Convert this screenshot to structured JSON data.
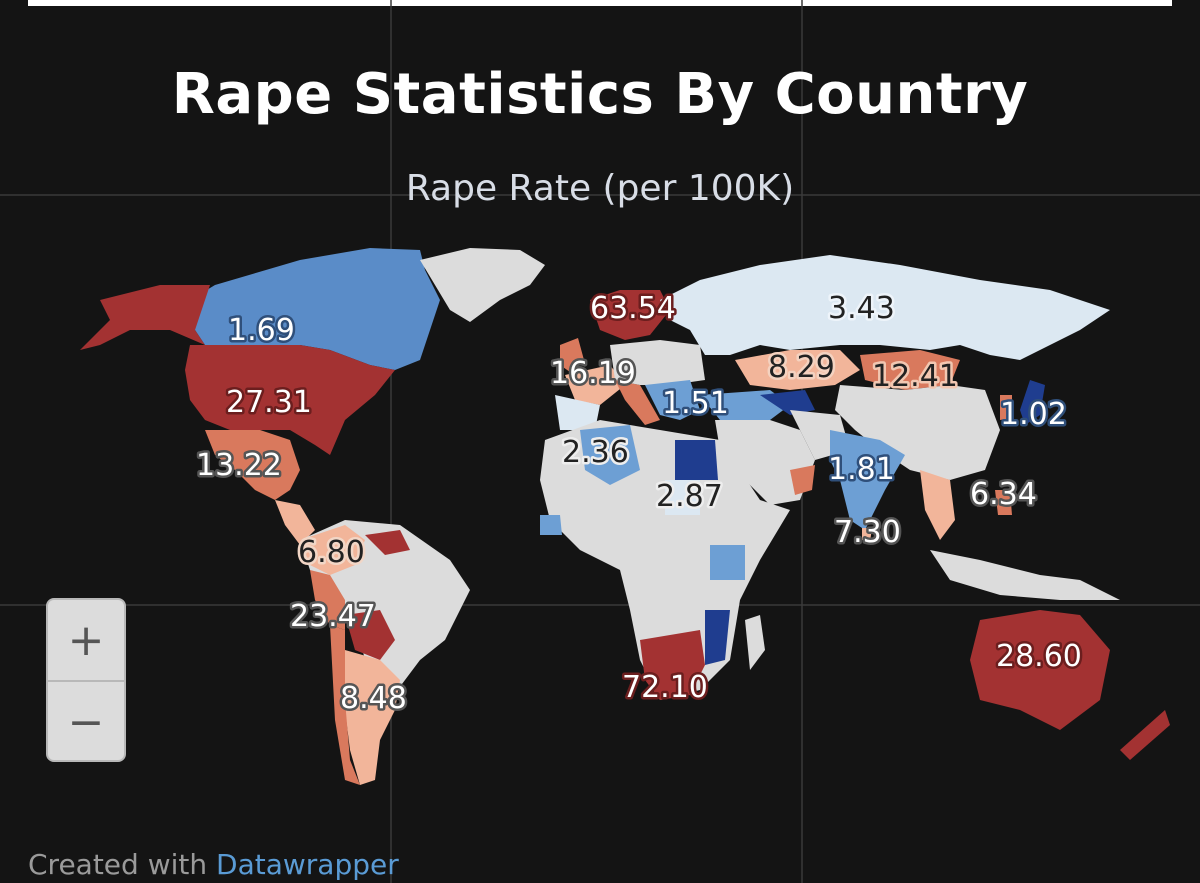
{
  "title": "Rape Statistics By Country",
  "subtitle": "Rape Rate (per 100K)",
  "legend_colors": {
    "highest": "#a33232",
    "high": "#d9795d",
    "mid": "#f2b59a",
    "low": "#dce8f2",
    "lower": "#6d9fd4",
    "lowest": "#1f3d8f",
    "no_data": "#dcdcdc",
    "water": "#141414"
  },
  "labels": [
    {
      "region": "Canada",
      "value": "1.69"
    },
    {
      "region": "United States",
      "value": "27.31"
    },
    {
      "region": "Mexico",
      "value": "13.22"
    },
    {
      "region": "Colombia",
      "value": "6.80"
    },
    {
      "region": "Bolivia",
      "value": "23.47"
    },
    {
      "region": "Argentina",
      "value": "8.48"
    },
    {
      "region": "Sweden",
      "value": "63.54"
    },
    {
      "region": "France",
      "value": "16.19"
    },
    {
      "region": "Greece",
      "value": "1.51"
    },
    {
      "region": "Algeria",
      "value": "2.36"
    },
    {
      "region": "Chad",
      "value": "2.87"
    },
    {
      "region": "South Africa",
      "value": "72.10"
    },
    {
      "region": "Russia",
      "value": "3.43"
    },
    {
      "region": "Kazakhstan",
      "value": "8.29"
    },
    {
      "region": "Mongolia",
      "value": "12.41"
    },
    {
      "region": "Japan",
      "value": "1.02"
    },
    {
      "region": "India",
      "value": "1.81"
    },
    {
      "region": "Sri Lanka",
      "value": "7.30"
    },
    {
      "region": "Philippines",
      "value": "6.34"
    },
    {
      "region": "Australia",
      "value": "28.60"
    }
  ],
  "zoom": {
    "in": "+",
    "out": "−"
  },
  "credit": {
    "prefix": "Created with",
    "link": "Datawrapper"
  }
}
